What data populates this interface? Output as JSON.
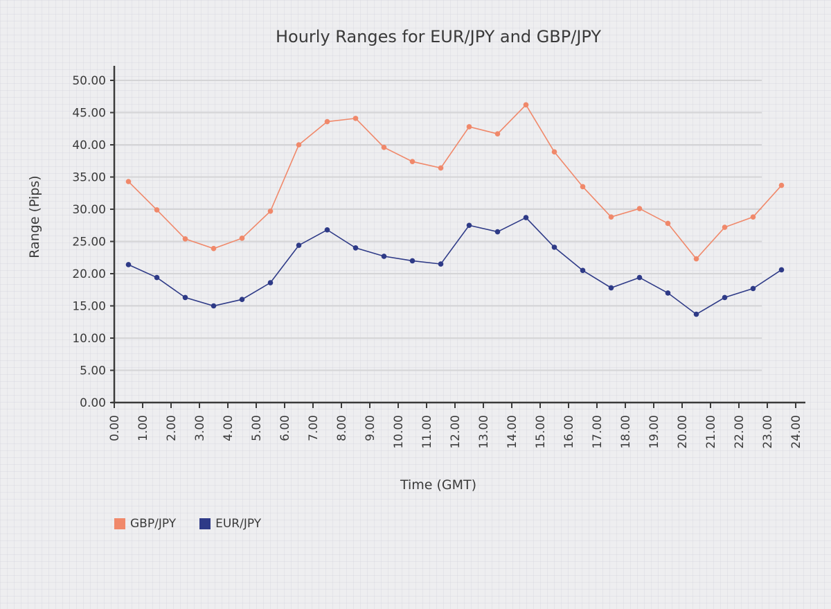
{
  "chart_data": {
    "type": "line",
    "title": "Hourly Ranges for EUR/JPY and GBP/JPY",
    "xlabel": "Time (GMT)",
    "ylabel": "Range (Pips)",
    "xlim": [
      0,
      24
    ],
    "ylim": [
      0,
      50
    ],
    "x_ticks": [
      "0.00",
      "1.00",
      "2.00",
      "3.00",
      "4.00",
      "5.00",
      "6.00",
      "7.00",
      "8.00",
      "9.00",
      "10.00",
      "11.00",
      "12.00",
      "13.00",
      "14.00",
      "15.00",
      "16.00",
      "17.00",
      "18.00",
      "19.00",
      "20.00",
      "21.00",
      "22.00",
      "23.00",
      "24.00"
    ],
    "y_ticks": [
      "0.00",
      "5.00",
      "10.00",
      "15.00",
      "20.00",
      "25.00",
      "30.00",
      "35.00",
      "40.00",
      "45.00",
      "50.00"
    ],
    "grid": "horizontal",
    "legend_position": "bottom-left",
    "x": [
      0.5,
      1.5,
      2.5,
      3.5,
      4.5,
      5.5,
      6.5,
      7.5,
      8.5,
      9.5,
      10.5,
      11.5,
      12.5,
      13.5,
      14.5,
      15.5,
      16.5,
      17.5,
      18.5,
      19.5,
      20.5,
      21.5,
      22.5,
      23.5
    ],
    "series": [
      {
        "name": "GBP/JPY",
        "color": "#f0886a",
        "values": [
          34.3,
          29.9,
          25.4,
          23.9,
          25.5,
          29.7,
          40.0,
          43.6,
          44.1,
          39.6,
          37.4,
          36.4,
          42.8,
          41.7,
          46.2,
          38.9,
          33.5,
          28.8,
          30.1,
          27.8,
          22.3,
          27.2,
          28.8,
          33.7
        ]
      },
      {
        "name": "EUR/JPY",
        "color": "#2e3a87",
        "values": [
          21.4,
          19.4,
          16.3,
          15.0,
          16.0,
          18.6,
          24.4,
          26.8,
          24.0,
          22.7,
          22.0,
          21.5,
          27.5,
          26.5,
          28.7,
          24.1,
          20.5,
          17.8,
          19.4,
          17.0,
          13.7,
          16.3,
          17.7,
          20.6
        ]
      }
    ]
  }
}
